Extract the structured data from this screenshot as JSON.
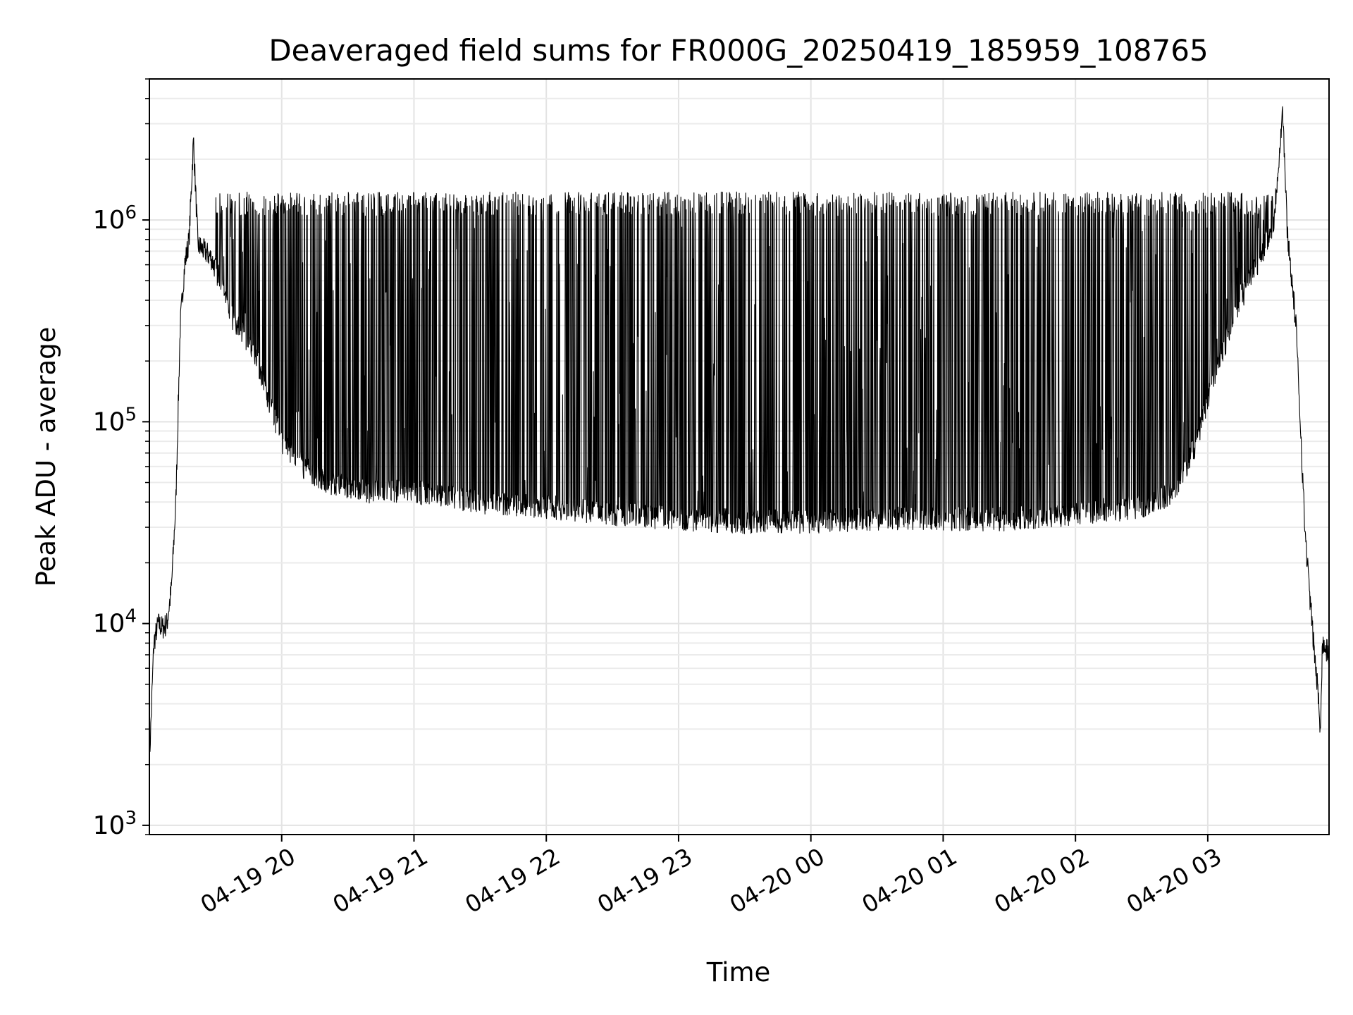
{
  "chart_data": {
    "type": "line",
    "title": "Deaveraged field sums for FR000G_20250419_185959_108765",
    "xlabel": "Time",
    "ylabel": "Peak ADU - average",
    "yscale": "log",
    "ylim": [
      900,
      5000000
    ],
    "xlim": [
      "2025-04-19 19:00",
      "2025-04-20 03:55"
    ],
    "grid": true,
    "legend": "none",
    "line_color": "#000000",
    "x_ticks": [
      {
        "t": "2025-04-19 20:00",
        "label": "04-19 20"
      },
      {
        "t": "2025-04-19 21:00",
        "label": "04-19 21"
      },
      {
        "t": "2025-04-19 22:00",
        "label": "04-19 22"
      },
      {
        "t": "2025-04-19 23:00",
        "label": "04-19 23"
      },
      {
        "t": "2025-04-20 00:00",
        "label": "04-20 00"
      },
      {
        "t": "2025-04-20 01:00",
        "label": "04-20 01"
      },
      {
        "t": "2025-04-20 02:00",
        "label": "04-20 02"
      },
      {
        "t": "2025-04-20 03:00",
        "label": "04-20 03"
      }
    ],
    "y_ticks": [
      {
        "value": 1000,
        "base": "10",
        "exp": "3"
      },
      {
        "value": 10000,
        "base": "10",
        "exp": "4"
      },
      {
        "value": 100000,
        "base": "10",
        "exp": "5"
      },
      {
        "value": 1000000,
        "base": "10",
        "exp": "6"
      }
    ],
    "series": [
      {
        "points": [
          [
            "2025-04-19 19:00",
            2000
          ],
          [
            "2025-04-19 19:02",
            8000
          ],
          [
            "2025-04-19 19:04",
            10000
          ],
          [
            "2025-04-19 19:06",
            9500
          ],
          [
            "2025-04-19 19:08",
            10000
          ],
          [
            "2025-04-19 19:10",
            15000
          ],
          [
            "2025-04-19 19:12",
            40000
          ],
          [
            "2025-04-19 19:14",
            300000
          ],
          [
            "2025-04-19 19:16",
            600000
          ],
          [
            "2025-04-19 19:18",
            800000
          ],
          [
            "2025-04-19 19:20",
            2500000
          ],
          [
            "2025-04-19 19:22",
            750000
          ],
          [
            "2025-04-19 19:25",
            700000
          ],
          [
            "2025-04-19 19:28",
            650000
          ],
          [
            "2025-04-19 19:32",
            500000
          ],
          [
            "2025-04-19 19:36",
            350000
          ],
          [
            "2025-04-19 19:40",
            300000
          ],
          [
            "2025-04-19 19:45",
            250000
          ],
          [
            "2025-04-19 19:50",
            180000
          ],
          [
            "2025-04-19 19:55",
            120000
          ],
          [
            "2025-04-19 20:00",
            80000
          ],
          [
            "2025-04-19 20:10",
            60000
          ],
          [
            "2025-04-19 20:20",
            50000
          ],
          [
            "2025-04-19 20:40",
            45000
          ],
          [
            "2025-04-19 21:00",
            45000
          ],
          [
            "2025-04-19 21:30",
            40000
          ],
          [
            "2025-04-19 22:00",
            38000
          ],
          [
            "2025-04-19 22:30",
            35000
          ],
          [
            "2025-04-19 23:00",
            33000
          ],
          [
            "2025-04-19 23:30",
            32000
          ],
          [
            "2025-04-20 00:00",
            32000
          ],
          [
            "2025-04-20 00:30",
            33000
          ],
          [
            "2025-04-20 01:00",
            33000
          ],
          [
            "2025-04-20 01:30",
            33000
          ],
          [
            "2025-04-20 02:00",
            35000
          ],
          [
            "2025-04-20 02:30",
            38000
          ],
          [
            "2025-04-20 02:45",
            45000
          ],
          [
            "2025-04-20 02:55",
            80000
          ],
          [
            "2025-04-20 03:05",
            200000
          ],
          [
            "2025-04-20 03:15",
            400000
          ],
          [
            "2025-04-20 03:25",
            700000
          ],
          [
            "2025-04-20 03:30",
            1000000
          ],
          [
            "2025-04-20 03:34",
            3500000
          ],
          [
            "2025-04-20 03:36",
            900000
          ],
          [
            "2025-04-20 03:40",
            300000
          ],
          [
            "2025-04-20 03:42",
            100000
          ],
          [
            "2025-04-20 03:44",
            30000
          ],
          [
            "2025-04-20 03:46",
            15000
          ],
          [
            "2025-04-20 03:48",
            8000
          ],
          [
            "2025-04-20 03:50",
            4500
          ],
          [
            "2025-04-20 03:51",
            3000
          ],
          [
            "2025-04-20 03:52",
            8000
          ],
          [
            "2025-04-20 03:55",
            7000
          ]
        ]
      }
    ]
  }
}
